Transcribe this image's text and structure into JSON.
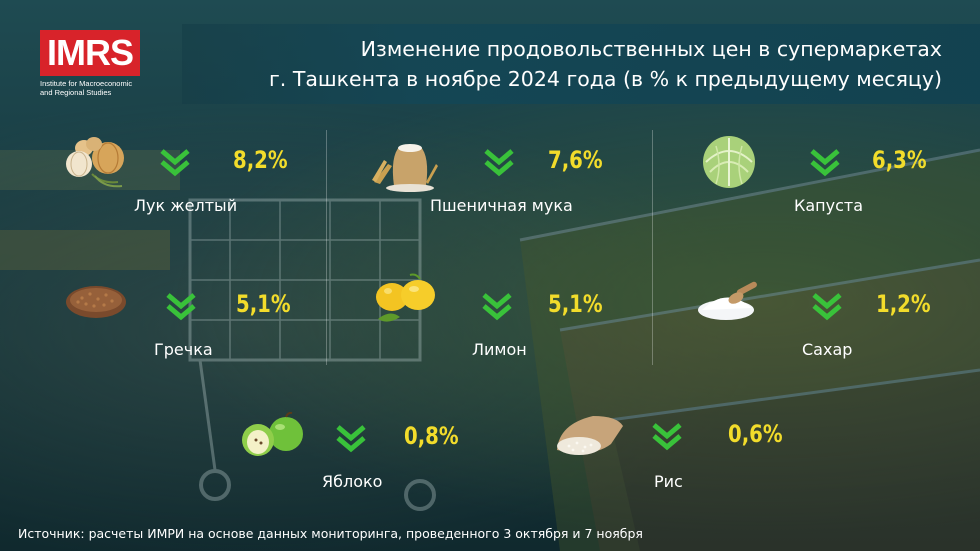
{
  "logo": {
    "text": "IMRS",
    "subtitle": "Institute for Macroeconomic\nand Regional Studies"
  },
  "title": {
    "line1": "Изменение продовольственных цен в супермаркетах",
    "line2": "г. Ташкента в ноябре 2024 года (в % к предыдущему месяцу)"
  },
  "items": [
    {
      "name": "Лук желтый",
      "value": "8,2%",
      "direction": "down",
      "icon": "onion-icon"
    },
    {
      "name": "Пшеничная мука",
      "value": "7,6%",
      "direction": "down",
      "icon": "flour-sack-icon"
    },
    {
      "name": "Капуста",
      "value": "6,3%",
      "direction": "down",
      "icon": "cabbage-icon"
    },
    {
      "name": "Гречка",
      "value": "5,1%",
      "direction": "down",
      "icon": "buckwheat-icon"
    },
    {
      "name": "Лимон",
      "value": "5,1%",
      "direction": "down",
      "icon": "lemon-icon"
    },
    {
      "name": "Сахар",
      "value": "1,2%",
      "direction": "down",
      "icon": "sugar-icon"
    },
    {
      "name": "Яблоко",
      "value": "0,8%",
      "direction": "down",
      "icon": "apple-icon"
    },
    {
      "name": "Рис",
      "value": "0,6%",
      "direction": "down",
      "icon": "rice-sack-icon"
    }
  ],
  "colors": {
    "value": "#f2dc2b",
    "chevron": "#39c23a",
    "logo": "#d8232a",
    "banner": "#14465a"
  },
  "source": "Источник: расчеты ИМРИ на основе данных мониторинга, проведенного 3 октября и 7 ноября"
}
